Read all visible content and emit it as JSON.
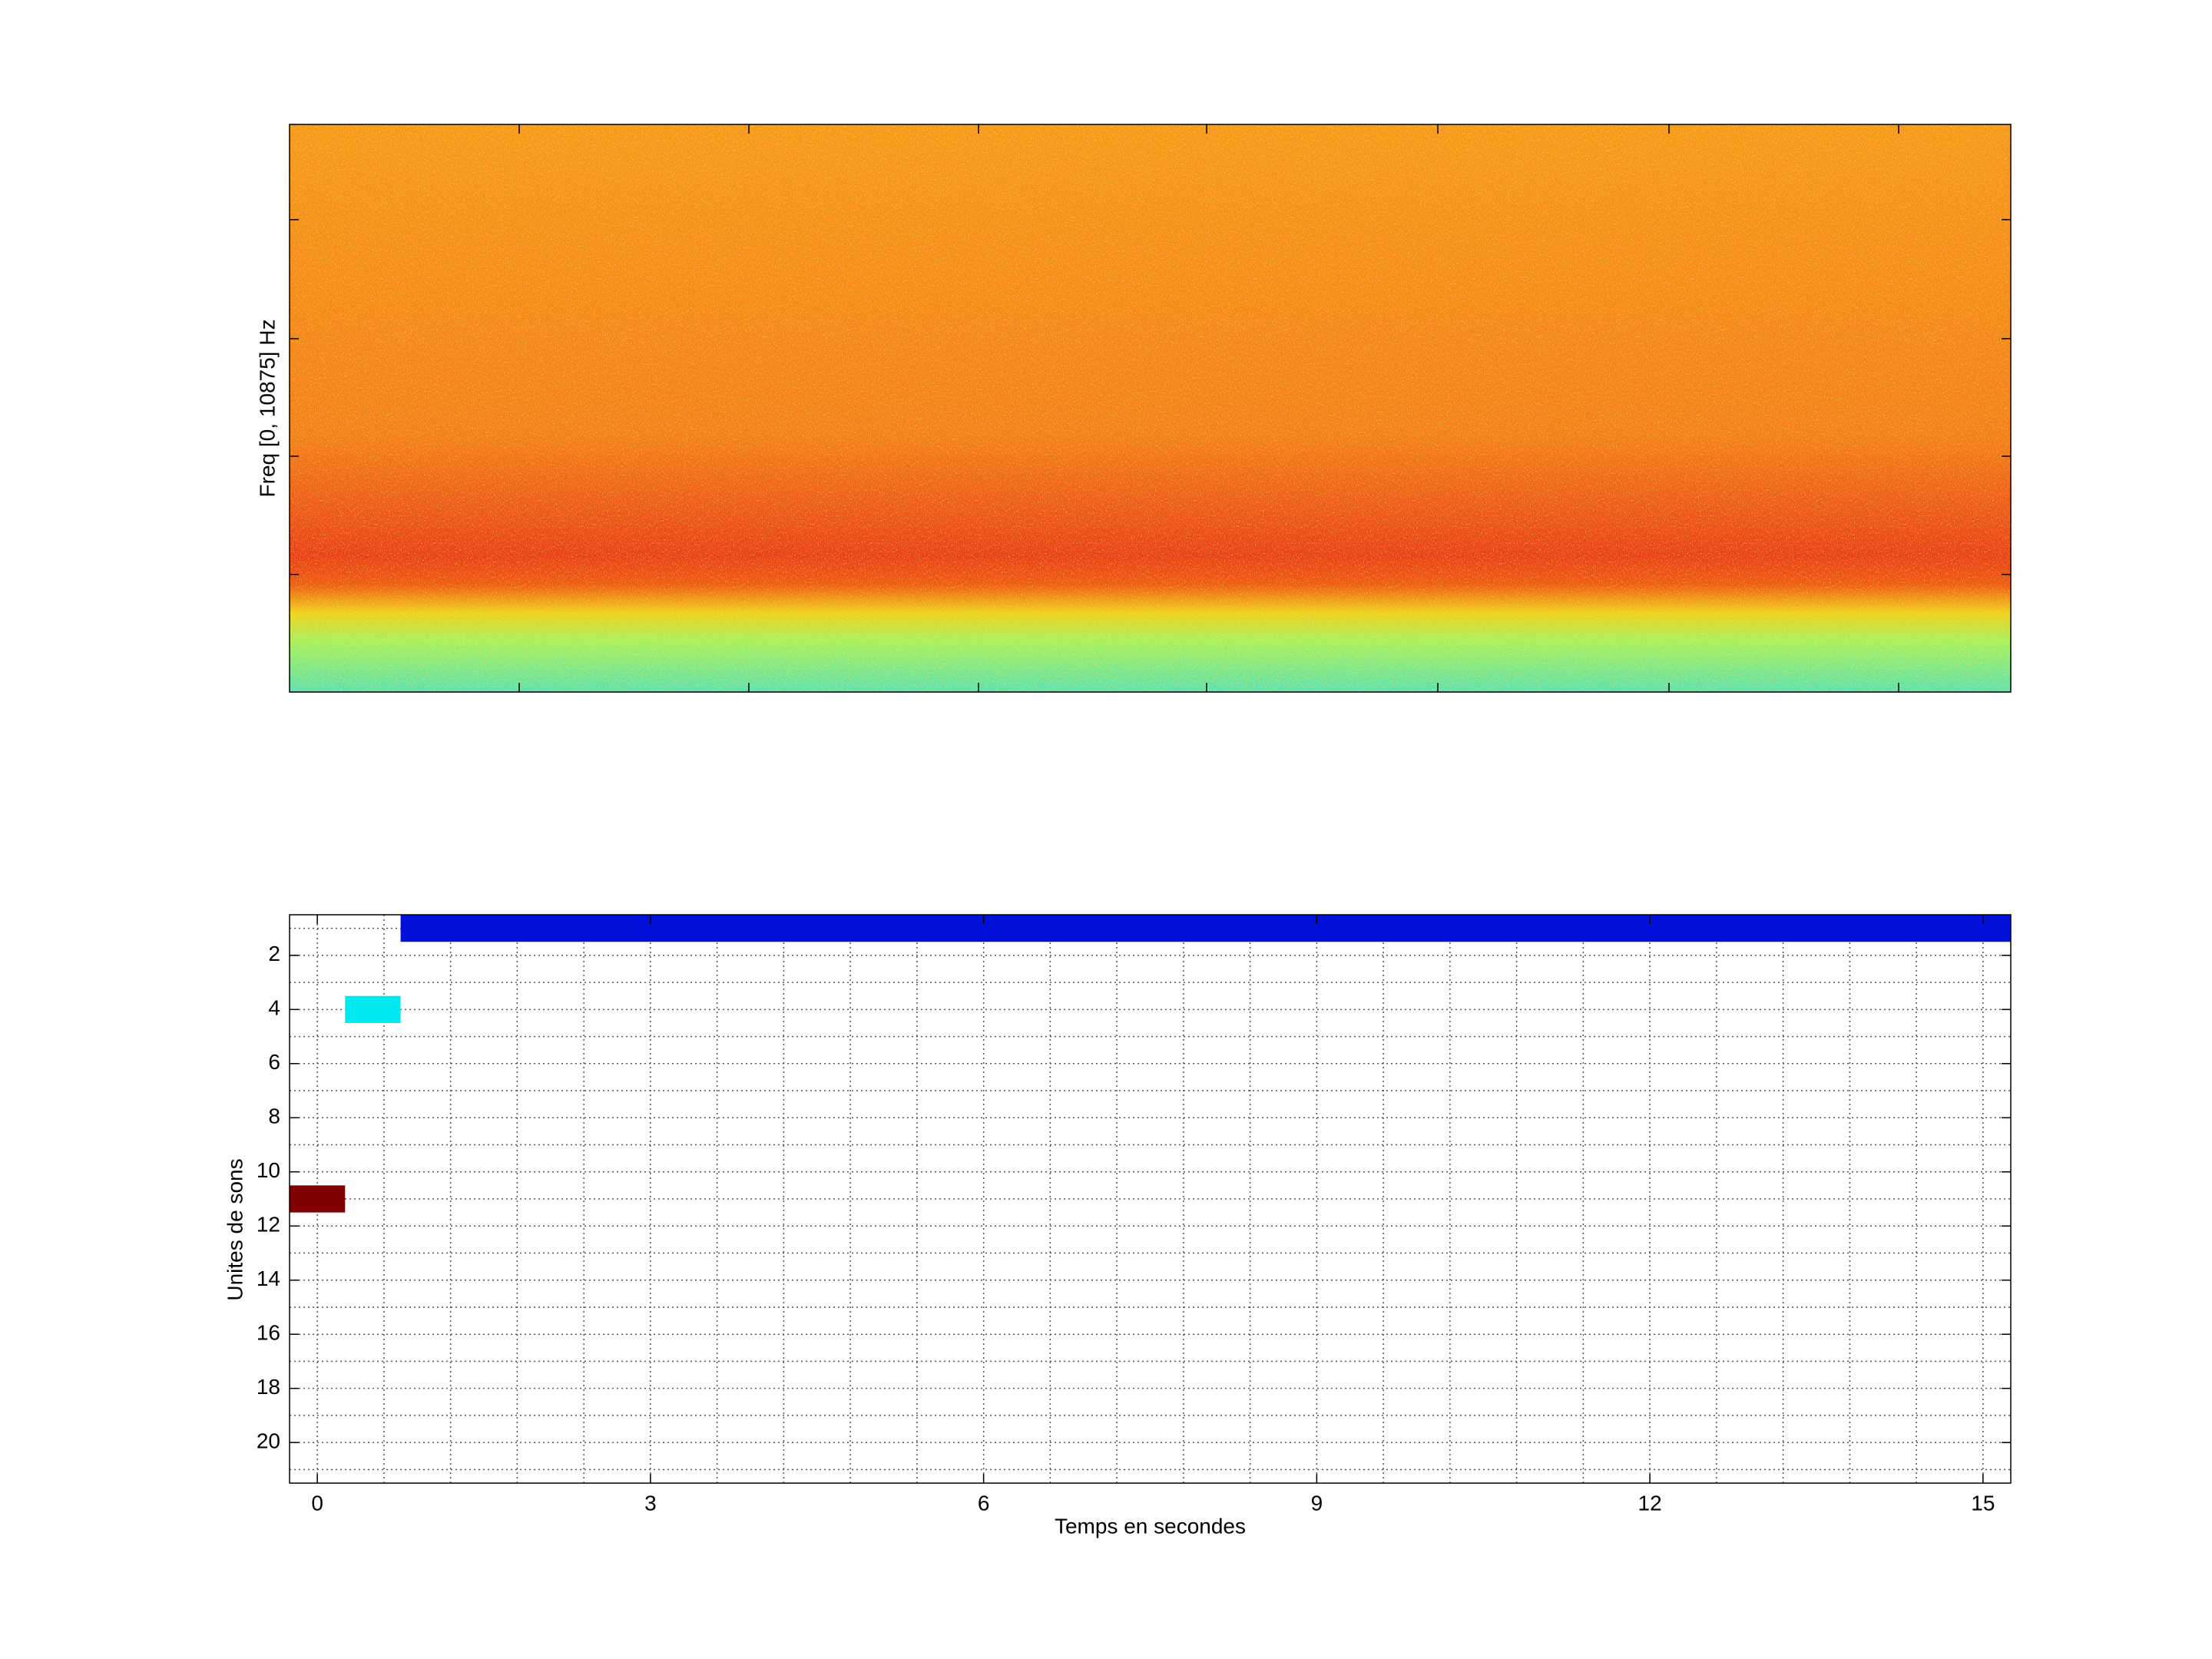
{
  "chart_data": [
    {
      "type": "spectrogram",
      "ylabel": "Freq [0, 10875] Hz"
    },
    {
      "type": "segments",
      "xlabel": "Temps en secondes",
      "ylabel": "Unites de sons",
      "xlim": [
        -0.25,
        15.25
      ],
      "ylim": [
        0.5,
        21.5
      ],
      "y_reversed": true,
      "xticks": [
        0,
        3,
        6,
        9,
        12,
        15
      ],
      "yticks": [
        2,
        4,
        6,
        8,
        10,
        12,
        14,
        16,
        18,
        20
      ],
      "xminorticks": [
        0,
        0.6,
        1.2,
        1.8,
        2.4,
        3,
        3.6,
        4.2,
        4.8,
        5.4,
        6,
        6.6,
        7.2,
        7.8,
        8.4,
        9,
        9.6,
        10.2,
        10.8,
        11.4,
        12,
        12.6,
        13.2,
        13.8,
        14.4,
        15
      ],
      "yminorticks": [
        1,
        2,
        3,
        4,
        5,
        6,
        7,
        8,
        9,
        10,
        11,
        12,
        13,
        14,
        15,
        16,
        17,
        18,
        19,
        20,
        21
      ],
      "grid": true,
      "segments": [
        {
          "unit": 1,
          "start": 0.75,
          "end": 15.25,
          "color": "#0010d8"
        },
        {
          "unit": 4,
          "start": 0.25,
          "end": 0.75,
          "color": "#00e8f0"
        },
        {
          "unit": 11,
          "start": -0.25,
          "end": 0.25,
          "color": "#7f0000"
        }
      ]
    }
  ]
}
